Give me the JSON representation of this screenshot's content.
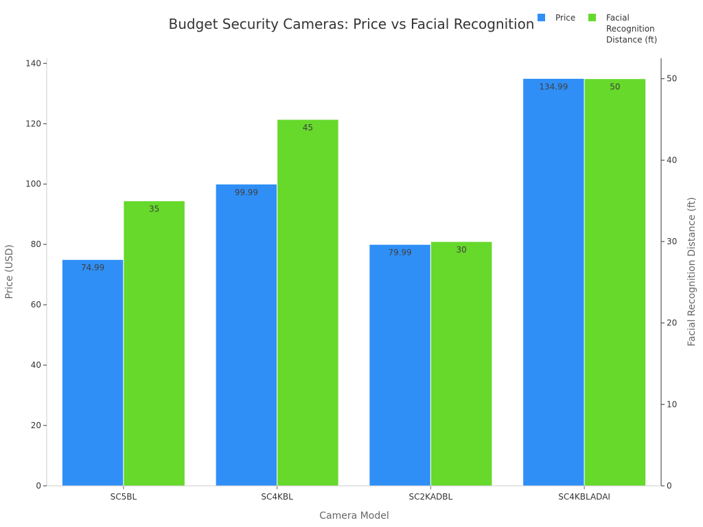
{
  "chart_data": {
    "type": "bar",
    "title": "Budget Security Cameras: Price vs Facial Recognition",
    "xlabel": "Camera Model",
    "ylabel": "Price (USD)",
    "y2label": "Facial Recognition Distance (ft)",
    "categories": [
      "SC5BL",
      "SC4KBL",
      "SC2KADBL",
      "SC4KBLADAI"
    ],
    "series": [
      {
        "name": "Price",
        "axis": "left",
        "color": "#2f8ff7",
        "values": [
          74.99,
          99.99,
          79.99,
          134.99
        ],
        "labels": [
          "74.99",
          "99.99",
          "79.99",
          "134.99"
        ]
      },
      {
        "name": "Facial Recognition Distance (ft)",
        "axis": "right",
        "color": "#66d92b",
        "values": [
          35,
          45,
          30,
          50
        ],
        "labels": [
          "35",
          "45",
          "30",
          "50"
        ]
      }
    ],
    "ylim": [
      0,
      140
    ],
    "yticks": [
      0,
      20,
      40,
      60,
      80,
      100,
      120,
      140
    ],
    "y2lim": [
      0,
      52
    ],
    "y2ticks": [
      0,
      10,
      20,
      30,
      40,
      50
    ],
    "legend": {
      "position": "top-right",
      "entries": [
        {
          "lines": [
            "Price"
          ],
          "color": "#2f8ff7"
        },
        {
          "lines": [
            "Facial",
            "Recognition",
            "Distance (ft)"
          ],
          "color": "#66d92b"
        }
      ]
    },
    "grid": false
  }
}
